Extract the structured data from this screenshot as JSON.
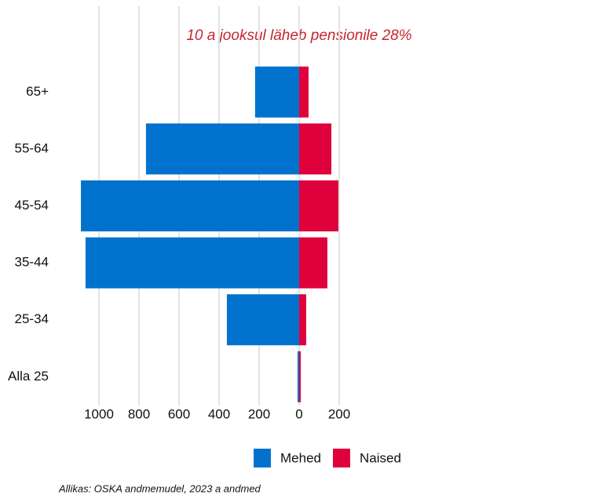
{
  "chart_data": {
    "type": "bar",
    "orientation": "horizontal",
    "stacked": "diverging",
    "title": "10 a jooksul läheb pensionile 28%",
    "categories": [
      "65+",
      "55-64",
      "45-54",
      "35-44",
      "25-34",
      "Alla 25"
    ],
    "series": [
      {
        "name": "Mehed",
        "color": "#0072ce",
        "values": [
          -220,
          -765,
          -1090,
          -1067,
          -361,
          -8
        ]
      },
      {
        "name": "Naised",
        "color": "#e0003c",
        "values": [
          47,
          161,
          196,
          141,
          35,
          8
        ]
      }
    ],
    "xlim": [
      -1100,
      250
    ],
    "xticks": [
      {
        "value": -1000,
        "label": "1000"
      },
      {
        "value": -800,
        "label": "800"
      },
      {
        "value": -600,
        "label": "600"
      },
      {
        "value": -400,
        "label": "400"
      },
      {
        "value": -200,
        "label": "200"
      },
      0,
      200
    ],
    "grid": true,
    "legend": "bottom",
    "source": "Allikas: OSKA andmemudel, 2023 a andmed"
  }
}
